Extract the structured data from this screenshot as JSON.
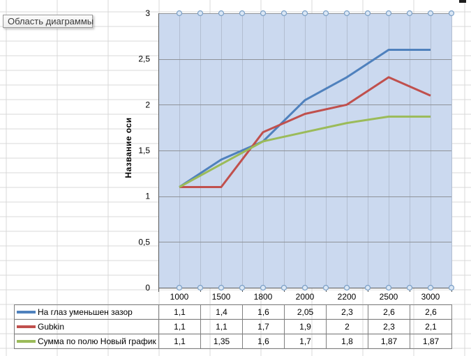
{
  "tooltip": {
    "text": "Область диаграммы"
  },
  "chart_data": {
    "type": "line",
    "y_axis_title": "Название оси",
    "categories": [
      "1000",
      "1500",
      "1800",
      "2000",
      "2200",
      "2500",
      "3000"
    ],
    "y_tick_labels": [
      "0",
      "0,5",
      "1",
      "1,5",
      "2",
      "2,5",
      "3"
    ],
    "ylim": [
      0,
      3
    ],
    "y_step": 0.5,
    "grid": "major-horizontal and vertical minor gridlines on",
    "legend_position": "data-table-left",
    "series": [
      {
        "name": "На глаз уменьшен зазор",
        "color": "#4f81bd",
        "values": [
          1.1,
          1.4,
          1.6,
          2.05,
          2.3,
          2.6,
          2.6
        ],
        "value_labels": [
          "1,1",
          "1,4",
          "1,6",
          "2,05",
          "2,3",
          "2,6",
          "2,6"
        ]
      },
      {
        "name": "Gubkin",
        "color": "#c0504d",
        "values": [
          1.1,
          1.1,
          1.7,
          1.9,
          2.0,
          2.3,
          2.1
        ],
        "value_labels": [
          "1,1",
          "1,1",
          "1,7",
          "1,9",
          "2",
          "2,3",
          "2,1"
        ]
      },
      {
        "name": "Сумма по полю Новый график",
        "color": "#9bbb59",
        "values": [
          1.1,
          1.35,
          1.6,
          1.7,
          1.8,
          1.87,
          1.87
        ],
        "value_labels": [
          "1,1",
          "1,35",
          "1,6",
          "1,7",
          "1,8",
          "1,87",
          "1,87"
        ]
      }
    ]
  },
  "colors": {
    "plot_bg": "#cbd9ef",
    "vertical_grid": "#b2bed1",
    "horizontal_grid": "#8e9298",
    "axis_line": "#595959",
    "handle_fill": "#dbe7f5",
    "handle_stroke": "#7ba0c7",
    "sheet_grid": "#d9d9d9",
    "table_border": "#7f7f7f",
    "text": "#000000"
  }
}
